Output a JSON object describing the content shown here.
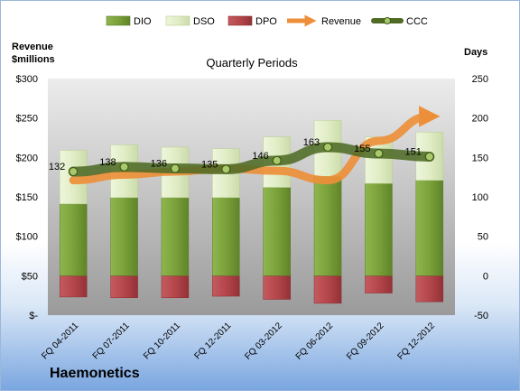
{
  "chart_data": {
    "type": "bar",
    "subtitle": "Quarterly Periods",
    "company": "Haemonetics",
    "y_left_title_line1": "Revenue",
    "y_left_title_line2": "$millions",
    "y_right_title": "Days",
    "categories": [
      "FQ 04-2011",
      "FQ 07-2011",
      "FQ 10-2011",
      "FQ 12-2011",
      "FQ 03-2012",
      "FQ 06-2012",
      "FQ 09-2012",
      "FQ 12-2012"
    ],
    "y_left_ticks": [
      "$-",
      "$50",
      "$100",
      "$150",
      "$200",
      "$250",
      "$300"
    ],
    "y_left_range": [
      0,
      300
    ],
    "y_right_ticks": [
      "-50",
      "0",
      "50",
      "100",
      "150",
      "200",
      "250"
    ],
    "y_right_range": [
      -50,
      250
    ],
    "series": [
      {
        "name": "DIO",
        "kind": "bar",
        "axis": "right",
        "color": "#7ca43c",
        "values": [
          91,
          99,
          99,
          99,
          112,
          126,
          117,
          121
        ]
      },
      {
        "name": "DSO",
        "kind": "bar",
        "axis": "right",
        "color": "#e0edc4",
        "values": [
          68,
          67,
          64,
          62,
          64,
          71,
          59,
          61
        ]
      },
      {
        "name": "DPO",
        "kind": "bar",
        "axis": "right",
        "color": "#b8474c",
        "values": [
          -27,
          -28,
          -28,
          -26,
          -30,
          -35,
          -22,
          -33
        ]
      },
      {
        "name": "Revenue",
        "kind": "line",
        "axis": "left",
        "color": "#ed8f3a",
        "values": [
          171,
          178,
          182,
          186,
          183,
          171,
          221,
          252
        ]
      },
      {
        "name": "CCC",
        "kind": "line",
        "axis": "right",
        "color": "#5c7a2e",
        "values": [
          132,
          138,
          136,
          135,
          146,
          163,
          155,
          151
        ],
        "labels": [
          "132",
          "138",
          "136",
          "135",
          "146",
          "163",
          "155",
          "151"
        ]
      }
    ],
    "legend_position": "top",
    "grid": false,
    "colors": {
      "plot_top": "#e8e8e8",
      "plot_bottom": "#9e9e9e",
      "frame_bottom": "#7aa6e0"
    }
  }
}
